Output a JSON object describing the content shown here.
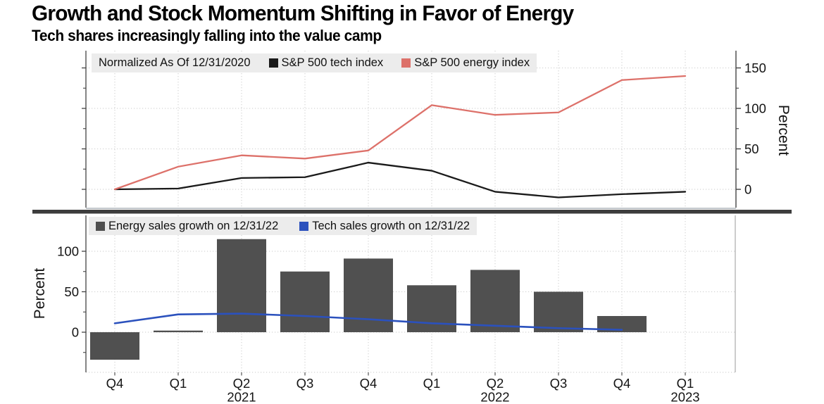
{
  "header": {
    "title": "Growth and Stock Momentum Shifting in Favor of Energy",
    "subtitle": "Tech shares increasingly falling into the value camp"
  },
  "colors": {
    "tech_index_line": "#1a1a1a",
    "energy_index_line": "#dd716a",
    "energy_bar": "#505050",
    "tech_sales_line": "#2b51bd",
    "legend_background": "#ececec",
    "divider": "#3c3c3c",
    "grid_line": "#d4d4d4",
    "axis_line": "#444444",
    "text": "#111111"
  },
  "x_axis": {
    "quarters": [
      "Q4",
      "Q1",
      "Q2",
      "Q3",
      "Q4",
      "Q1",
      "Q2",
      "Q3",
      "Q4",
      "Q1"
    ],
    "years": [
      {
        "label": "2021",
        "index": 2
      },
      {
        "label": "2022",
        "index": 6
      },
      {
        "label": "2023",
        "index": 9
      }
    ]
  },
  "chart_data": [
    {
      "type": "line",
      "note": "Normalized As Of 12/31/2020",
      "x": [
        "Q4 2020",
        "Q1 2021",
        "Q2 2021",
        "Q3 2021",
        "Q4 2021",
        "Q1 2022",
        "Q2 2022",
        "Q3 2022",
        "Q4 2022",
        "Q1 2023"
      ],
      "series": [
        {
          "name": "S&P 500 tech index",
          "color": "#1a1a1a",
          "values": [
            0,
            1,
            14,
            15,
            33,
            23,
            -3,
            -10,
            -6,
            -3
          ]
        },
        {
          "name": "S&P 500 energy index",
          "color": "#dd716a",
          "values": [
            0,
            28,
            42,
            38,
            48,
            104,
            92,
            95,
            135,
            140
          ]
        }
      ],
      "ylabel": "Percent",
      "yticks": [
        0,
        50,
        100,
        150
      ],
      "yminors": [
        25,
        75,
        125
      ],
      "ylim": [
        -22,
        171
      ],
      "y_axis_side": "right",
      "grid": true,
      "legend_position": "top-left"
    },
    {
      "type": "bar+line",
      "x": [
        "Q4 2020",
        "Q1 2021",
        "Q2 2021",
        "Q3 2021",
        "Q4 2021",
        "Q1 2022",
        "Q2 2022",
        "Q3 2022",
        "Q4 2022",
        "Q1 2023"
      ],
      "series": [
        {
          "name": "Energy sales growth on 12/31/22",
          "chart": "bar",
          "color": "#505050",
          "values": [
            -34,
            2,
            115,
            75,
            91,
            58,
            77,
            50,
            20,
            null
          ]
        },
        {
          "name": "Tech sales growth on 12/31/22",
          "chart": "line",
          "color": "#2b51bd",
          "values": [
            11,
            22,
            23,
            20,
            16,
            11,
            8,
            5,
            3,
            null
          ]
        }
      ],
      "ylabel": "Percent",
      "yticks": [
        0,
        50,
        100
      ],
      "yminors": [
        -25,
        25,
        75
      ],
      "ylim": [
        -48,
        144
      ],
      "y_axis_side": "left",
      "grid": true,
      "legend_position": "top-left"
    }
  ]
}
